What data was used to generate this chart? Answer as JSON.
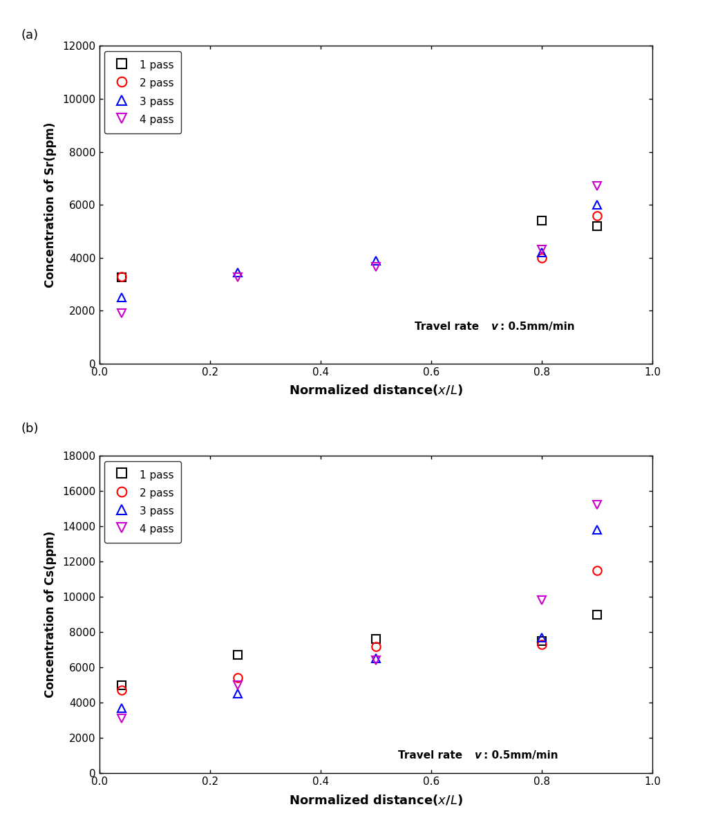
{
  "sr_data": {
    "x_positions": [
      0.04,
      0.25,
      0.5,
      0.8,
      0.9
    ],
    "pass1": [
      3250,
      null,
      null,
      5400,
      5200
    ],
    "pass2": [
      3300,
      null,
      null,
      4000,
      5600
    ],
    "pass3": [
      2500,
      3450,
      3900,
      4200,
      6000
    ],
    "pass4": [
      1900,
      3250,
      3650,
      4300,
      6700
    ]
  },
  "cs_data": {
    "x_positions": [
      0.04,
      0.25,
      0.5,
      0.8,
      0.9
    ],
    "pass1": [
      5000,
      6700,
      7600,
      7500,
      9000
    ],
    "pass2": [
      4700,
      5400,
      7200,
      7300,
      11500
    ],
    "pass3": [
      3700,
      4500,
      6500,
      7700,
      13800
    ],
    "pass4": [
      3100,
      5000,
      6400,
      9800,
      15200
    ]
  },
  "colors": {
    "pass1": "#000000",
    "pass2": "#ff0000",
    "pass3": "#0000ff",
    "pass4": "#cc00cc"
  },
  "sr_ylim": [
    0,
    12000
  ],
  "sr_yticks": [
    0,
    2000,
    4000,
    6000,
    8000,
    10000,
    12000
  ],
  "cs_ylim": [
    0,
    18000
  ],
  "cs_yticks": [
    0,
    2000,
    4000,
    6000,
    8000,
    10000,
    12000,
    14000,
    16000,
    18000
  ],
  "xlim": [
    0.0,
    1.0
  ],
  "xticks": [
    0.0,
    0.2,
    0.4,
    0.6,
    0.8,
    1.0
  ],
  "sr_ylabel": "Concentration of Sr(ppm)",
  "cs_ylabel": "Concentration of Cs(ppm)",
  "sr_annotation": "Travel rate v: 0.5mm/min",
  "cs_annotation": "Travel rate v: 0.5mm/min",
  "label_a": "(a)",
  "label_b": "(b)",
  "marker_size": 9,
  "legend_labels": [
    "1 pass",
    "2 pass",
    "3 pass",
    "4 pass"
  ],
  "fig_width": 10.26,
  "fig_height": 12.09
}
